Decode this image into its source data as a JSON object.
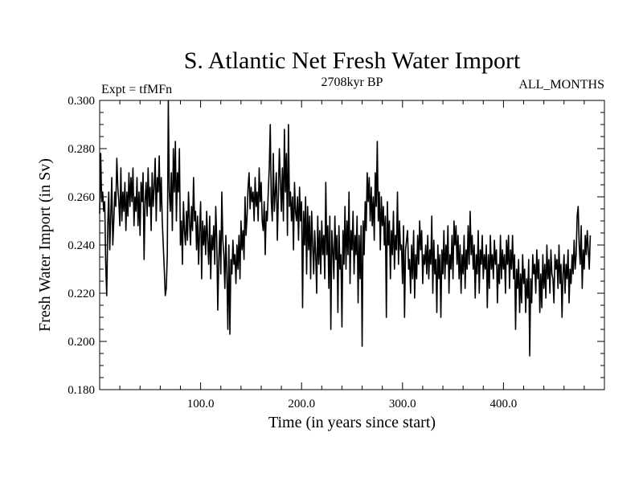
{
  "chart_data": {
    "type": "line",
    "title": "S. Atlantic Net Fresh Water Import",
    "subtitle": "2708kyr BP",
    "left_label": "Expt = tfMFn",
    "right_label": "ALL_MONTHS",
    "xlabel": "Time (in years since start)",
    "ylabel": "Fresh Water Import (in Sv)",
    "xlim": [
      0,
      500
    ],
    "ylim": [
      0.18,
      0.3
    ],
    "x_ticks": [
      100,
      200,
      300,
      400
    ],
    "x_tick_labels": [
      "100.0",
      "200.0",
      "300.0",
      "400.0"
    ],
    "y_ticks": [
      0.18,
      0.2,
      0.22,
      0.24,
      0.26,
      0.28,
      0.3
    ],
    "y_tick_labels": [
      "0.180",
      "0.200",
      "0.220",
      "0.240",
      "0.260",
      "0.280",
      "0.300"
    ],
    "grid": false,
    "series": [
      {
        "name": "Net Fresh Water Import",
        "x_start": 0,
        "x_step": 1,
        "values": [
          0.253,
          0.278,
          0.258,
          0.262,
          0.254,
          0.258,
          0.232,
          0.219,
          0.248,
          0.262,
          0.238,
          0.252,
          0.268,
          0.24,
          0.25,
          0.262,
          0.256,
          0.276,
          0.264,
          0.258,
          0.248,
          0.272,
          0.25,
          0.262,
          0.254,
          0.266,
          0.246,
          0.262,
          0.252,
          0.27,
          0.256,
          0.268,
          0.258,
          0.272,
          0.248,
          0.26,
          0.254,
          0.268,
          0.248,
          0.262,
          0.244,
          0.266,
          0.258,
          0.27,
          0.234,
          0.258,
          0.266,
          0.252,
          0.272,
          0.256,
          0.264,
          0.246,
          0.27,
          0.256,
          0.264,
          0.276,
          0.25,
          0.268,
          0.262,
          0.277,
          0.254,
          0.268,
          0.25,
          0.24,
          0.23,
          0.219,
          0.222,
          0.236,
          0.3,
          0.262,
          0.254,
          0.27,
          0.246,
          0.28,
          0.262,
          0.283,
          0.25,
          0.27,
          0.262,
          0.28,
          0.24,
          0.25,
          0.232,
          0.258,
          0.246,
          0.24,
          0.254,
          0.242,
          0.262,
          0.25,
          0.24,
          0.256,
          0.246,
          0.268,
          0.25,
          0.254,
          0.238,
          0.252,
          0.232,
          0.246,
          0.258,
          0.226,
          0.25,
          0.24,
          0.248,
          0.236,
          0.254,
          0.242,
          0.232,
          0.252,
          0.226,
          0.244,
          0.238,
          0.248,
          0.232,
          0.256,
          0.242,
          0.213,
          0.234,
          0.246,
          0.228,
          0.262,
          0.242,
          0.236,
          0.222,
          0.244,
          0.228,
          0.205,
          0.24,
          0.203,
          0.234,
          0.228,
          0.242,
          0.232,
          0.236,
          0.224,
          0.24,
          0.23,
          0.244,
          0.226,
          0.25,
          0.238,
          0.246,
          0.234,
          0.26,
          0.244,
          0.252,
          0.264,
          0.27,
          0.255,
          0.264,
          0.258,
          0.262,
          0.25,
          0.268,
          0.256,
          0.262,
          0.25,
          0.272,
          0.258,
          0.266,
          0.25,
          0.246,
          0.258,
          0.236,
          0.254,
          0.25,
          0.262,
          0.272,
          0.29,
          0.258,
          0.25,
          0.278,
          0.254,
          0.262,
          0.27,
          0.242,
          0.26,
          0.28,
          0.266,
          0.254,
          0.272,
          0.25,
          0.288,
          0.262,
          0.278,
          0.244,
          0.29,
          0.256,
          0.262,
          0.25,
          0.26,
          0.238,
          0.266,
          0.254,
          0.25,
          0.26,
          0.242,
          0.264,
          0.25,
          0.258,
          0.214,
          0.254,
          0.24,
          0.26,
          0.228,
          0.256,
          0.238,
          0.252,
          0.226,
          0.254,
          0.24,
          0.228,
          0.246,
          0.236,
          0.22,
          0.252,
          0.232,
          0.246,
          0.228,
          0.25,
          0.236,
          0.244,
          0.226,
          0.266,
          0.236,
          0.248,
          0.222,
          0.252,
          0.205,
          0.246,
          0.238,
          0.226,
          0.252,
          0.234,
          0.244,
          0.212,
          0.248,
          0.23,
          0.236,
          0.206,
          0.246,
          0.232,
          0.256,
          0.23,
          0.25,
          0.236,
          0.262,
          0.224,
          0.246,
          0.238,
          0.254,
          0.228,
          0.244,
          0.236,
          0.252,
          0.216,
          0.244,
          0.226,
          0.248,
          0.198,
          0.25,
          0.236,
          0.258,
          0.246,
          0.27,
          0.258,
          0.268,
          0.25,
          0.264,
          0.248,
          0.26,
          0.242,
          0.27,
          0.256,
          0.283,
          0.25,
          0.262,
          0.238,
          0.26,
          0.248,
          0.256,
          0.24,
          0.252,
          0.21,
          0.258,
          0.24,
          0.25,
          0.226,
          0.246,
          0.236,
          0.254,
          0.23,
          0.244,
          0.238,
          0.262,
          0.232,
          0.25,
          0.238,
          0.24,
          0.224,
          0.248,
          0.21,
          0.238,
          0.242,
          0.246,
          0.23,
          0.234,
          0.22,
          0.24,
          0.226,
          0.246,
          0.218,
          0.236,
          0.226,
          0.244,
          0.232,
          0.25,
          0.238,
          0.246,
          0.224,
          0.236,
          0.232,
          0.24,
          0.228,
          0.244,
          0.226,
          0.238,
          0.232,
          0.252,
          0.22,
          0.242,
          0.228,
          0.234,
          0.212,
          0.24,
          0.226,
          0.236,
          0.21,
          0.238,
          0.228,
          0.246,
          0.226,
          0.24,
          0.232,
          0.248,
          0.22,
          0.236,
          0.23,
          0.244,
          0.226,
          0.25,
          0.24,
          0.248,
          0.232,
          0.244,
          0.226,
          0.24,
          0.22,
          0.236,
          0.228,
          0.244,
          0.222,
          0.238,
          0.23,
          0.248,
          0.232,
          0.254,
          0.236,
          0.244,
          0.23,
          0.24,
          0.218,
          0.236,
          0.228,
          0.246,
          0.22,
          0.238,
          0.232,
          0.244,
          0.226,
          0.236,
          0.23,
          0.24,
          0.214,
          0.236,
          0.222,
          0.244,
          0.23,
          0.236,
          0.226,
          0.242,
          0.232,
          0.238,
          0.216,
          0.232,
          0.224,
          0.244,
          0.226,
          0.238,
          0.23,
          0.236,
          0.22,
          0.242,
          0.232,
          0.244,
          0.222,
          0.238,
          0.23,
          0.244,
          0.226,
          0.236,
          0.205,
          0.23,
          0.222,
          0.234,
          0.212,
          0.228,
          0.216,
          0.236,
          0.224,
          0.23,
          0.212,
          0.226,
          0.218,
          0.234,
          0.194,
          0.226,
          0.216,
          0.236,
          0.228,
          0.232,
          0.22,
          0.238,
          0.226,
          0.234,
          0.212,
          0.228,
          0.214,
          0.236,
          0.222,
          0.232,
          0.218,
          0.24,
          0.226,
          0.234,
          0.22,
          0.238,
          0.228,
          0.226,
          0.216,
          0.236,
          0.23,
          0.234,
          0.222,
          0.24,
          0.224,
          0.232,
          0.21,
          0.228,
          0.236,
          0.22,
          0.232,
          0.226,
          0.238,
          0.216,
          0.23,
          0.224,
          0.236,
          0.228,
          0.242,
          0.23,
          0.236,
          0.252,
          0.256,
          0.24,
          0.232,
          0.248,
          0.222,
          0.238,
          0.23,
          0.244,
          0.236,
          0.246,
          0.238,
          0.23,
          0.244
        ]
      }
    ]
  }
}
